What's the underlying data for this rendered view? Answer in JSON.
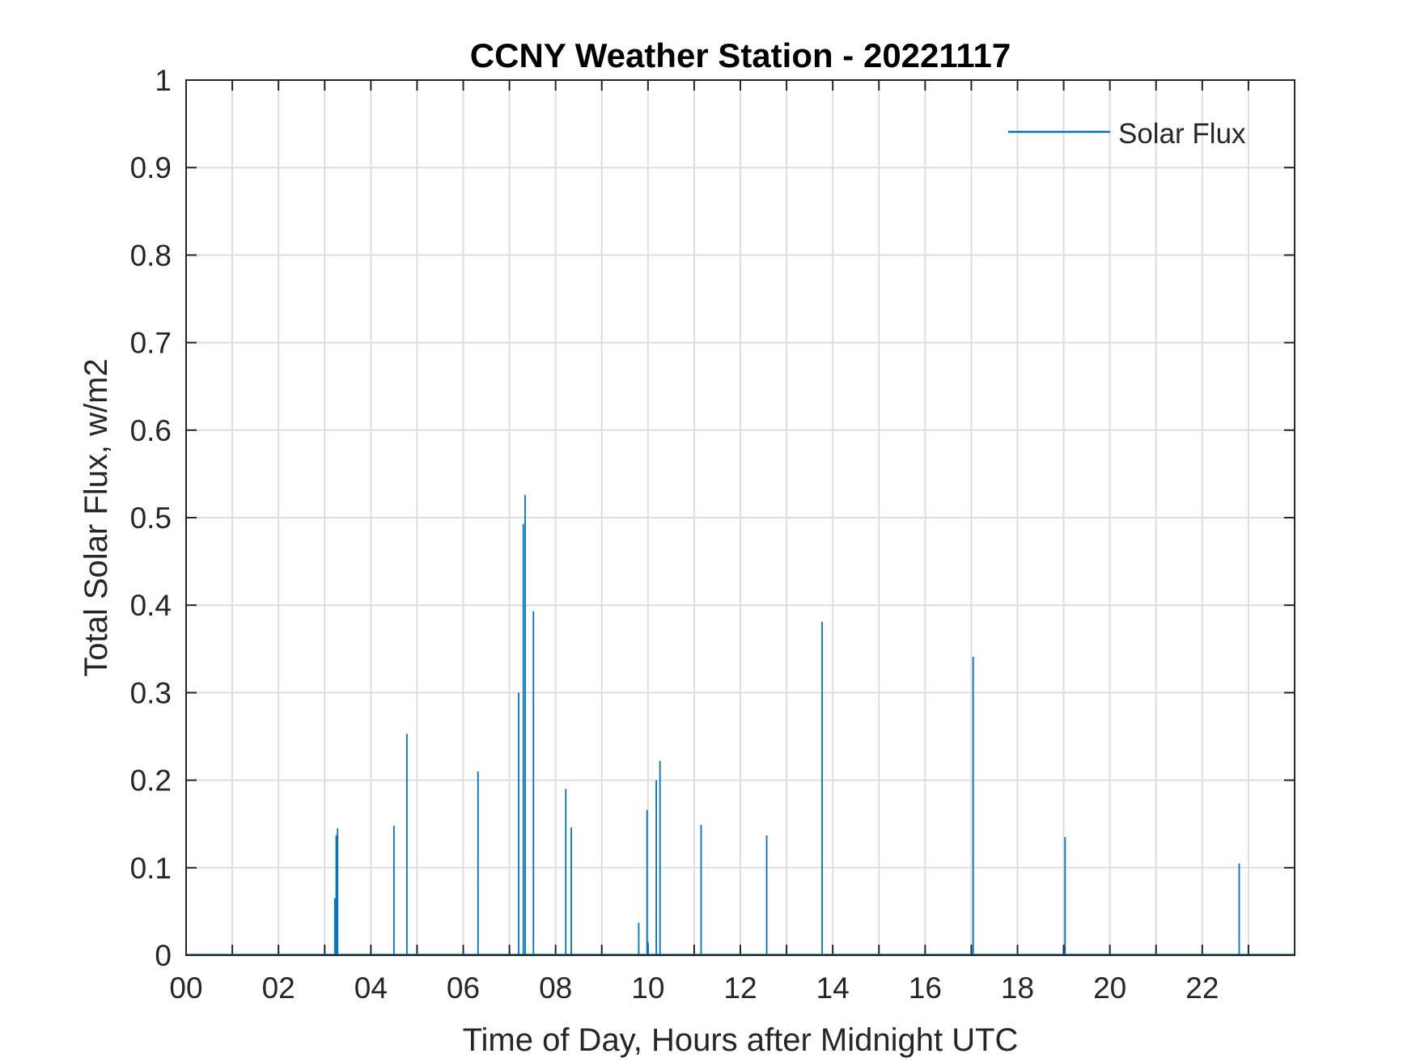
{
  "chart_data": {
    "type": "line",
    "title": "CCNY Weather Station - 20221117",
    "xlabel": "Time of Day, Hours after Midnight UTC",
    "ylabel": "Total Solar Flux, w/m2",
    "xlim": [
      0,
      24
    ],
    "ylim": [
      0,
      1
    ],
    "grid": true,
    "legend_position": "top-right",
    "x_ticks": [
      0,
      2,
      4,
      6,
      8,
      10,
      12,
      14,
      16,
      18,
      20,
      22
    ],
    "x_tick_labels": [
      "00",
      "02",
      "04",
      "06",
      "08",
      "10",
      "12",
      "14",
      "16",
      "18",
      "20",
      "22"
    ],
    "y_ticks": [
      0,
      0.1,
      0.2,
      0.3,
      0.4,
      0.5,
      0.6,
      0.7,
      0.8,
      0.9,
      1
    ],
    "y_tick_labels": [
      "0",
      "0.1",
      "0.2",
      "0.3",
      "0.4",
      "0.5",
      "0.6",
      "0.7",
      "0.8",
      "0.9",
      "1"
    ],
    "series": [
      {
        "name": "Solar Flux",
        "color": "#0072BD",
        "spikes": [
          {
            "x": 3.22,
            "y": 0.065
          },
          {
            "x": 3.25,
            "y": 0.137
          },
          {
            "x": 3.28,
            "y": 0.145
          },
          {
            "x": 4.5,
            "y": 0.148
          },
          {
            "x": 4.78,
            "y": 0.253
          },
          {
            "x": 6.32,
            "y": 0.21
          },
          {
            "x": 7.2,
            "y": 0.3
          },
          {
            "x": 7.3,
            "y": 0.493
          },
          {
            "x": 7.34,
            "y": 0.526
          },
          {
            "x": 7.52,
            "y": 0.393
          },
          {
            "x": 8.22,
            "y": 0.19
          },
          {
            "x": 8.34,
            "y": 0.146
          },
          {
            "x": 9.8,
            "y": 0.037
          },
          {
            "x": 9.98,
            "y": 0.166
          },
          {
            "x": 10.0,
            "y": 0.015
          },
          {
            "x": 10.18,
            "y": 0.2
          },
          {
            "x": 10.26,
            "y": 0.222
          },
          {
            "x": 11.15,
            "y": 0.149
          },
          {
            "x": 12.57,
            "y": 0.137
          },
          {
            "x": 13.77,
            "y": 0.381
          },
          {
            "x": 17.04,
            "y": 0.341
          },
          {
            "x": 19.03,
            "y": 0.135
          },
          {
            "x": 22.8,
            "y": 0.105
          }
        ]
      }
    ]
  }
}
